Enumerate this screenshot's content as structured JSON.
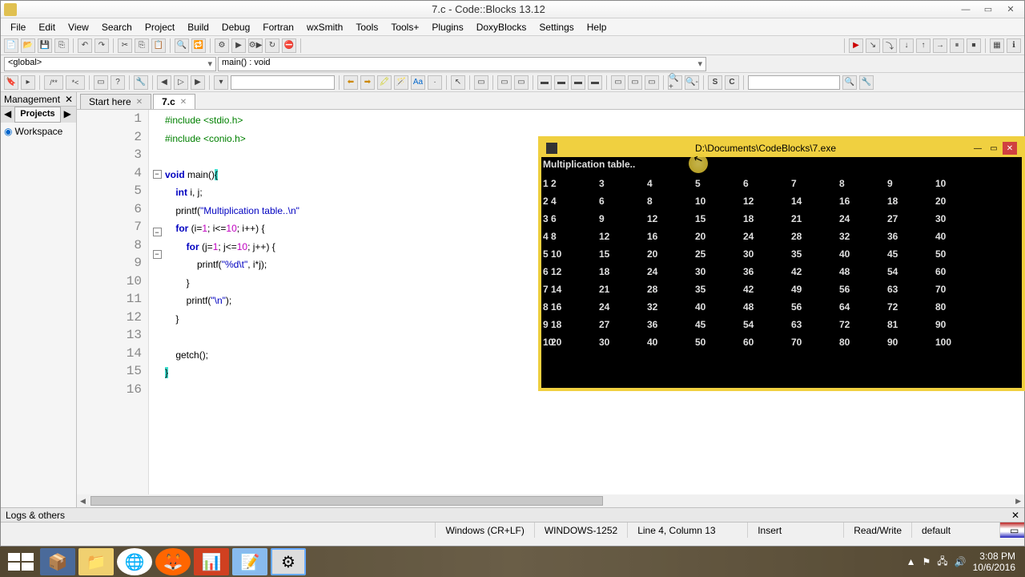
{
  "title": "7.c - Code::Blocks 13.12",
  "menu": [
    "File",
    "Edit",
    "View",
    "Search",
    "Project",
    "Build",
    "Debug",
    "Fortran",
    "wxSmith",
    "Tools",
    "Tools+",
    "Plugins",
    "DoxyBlocks",
    "Settings",
    "Help"
  ],
  "scope_global": "<global>",
  "scope_func": "main() : void",
  "mgmt_title": "Management",
  "projects_tab": "Projects",
  "workspace": "Workspace",
  "tabs": {
    "start": "Start here",
    "file": "7.c"
  },
  "code_lines": [
    {
      "n": 1,
      "html": "<span class='pp'>#include &lt;stdio.h&gt;</span>"
    },
    {
      "n": 2,
      "html": "<span class='pp'>#include &lt;conio.h&gt;</span>"
    },
    {
      "n": 3,
      "html": ""
    },
    {
      "n": 4,
      "html": "<span class='kw'>void</span> main()<span class='brace-hl'>{</span>",
      "fold": true
    },
    {
      "n": 5,
      "html": "    <span class='kw'>int</span> i, j;"
    },
    {
      "n": 6,
      "html": "    printf(<span class='str'>\"Multiplication table..\\n\"</span>"
    },
    {
      "n": 7,
      "html": "    <span class='kw'>for</span> (i=<span class='num'>1</span>; i&lt;=<span class='num'>10</span>; i++) {",
      "fold": true
    },
    {
      "n": 8,
      "html": "        <span class='kw'>for</span> (j=<span class='num'>1</span>; j&lt;=<span class='num'>10</span>; j++) {",
      "fold": true
    },
    {
      "n": 9,
      "html": "            printf(<span class='str'>\"%d\\t\"</span>, i*j);"
    },
    {
      "n": 10,
      "html": "        }"
    },
    {
      "n": 11,
      "html": "        printf(<span class='str'>\"\\n\"</span>);"
    },
    {
      "n": 12,
      "html": "    }"
    },
    {
      "n": 13,
      "html": ""
    },
    {
      "n": 14,
      "html": "    getch();"
    },
    {
      "n": 15,
      "html": "<span class='brace-hl'>}</span>"
    },
    {
      "n": 16,
      "html": ""
    }
  ],
  "logs_label": "Logs & others",
  "status": {
    "enc": "Windows (CR+LF)",
    "cp": "WINDOWS-1252",
    "pos": "Line 4, Column 13",
    "ins": "Insert",
    "ro": "Read/Write",
    "prof": "default"
  },
  "console": {
    "title": "D:\\Documents\\CodeBlocks\\7.exe",
    "header": "Multiplication table..",
    "rows": 10,
    "cols": 10
  },
  "tray": {
    "time": "3:08 PM",
    "date": "10/6/2016"
  }
}
